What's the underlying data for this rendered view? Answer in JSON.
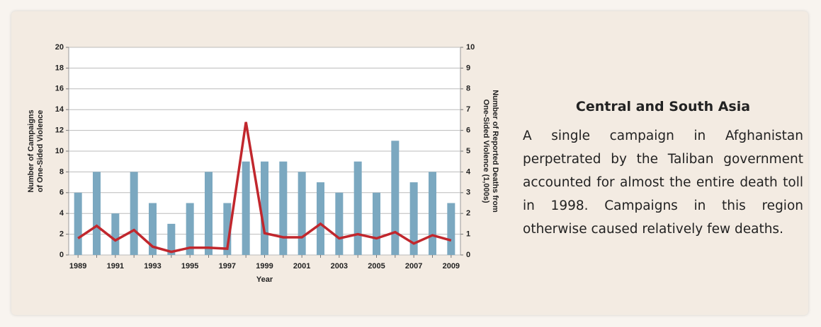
{
  "chart_data": {
    "type": "bar",
    "categories": [
      "1989",
      null,
      "1991",
      null,
      "1993",
      null,
      "1995",
      null,
      "1997",
      null,
      "1999",
      null,
      "2001",
      null,
      "2003",
      null,
      "2005",
      null,
      "2007",
      null,
      "2009"
    ],
    "series": [
      {
        "type": "bar",
        "color": "#7ba8c0",
        "values": [
          6,
          8,
          4,
          8,
          5,
          3,
          5,
          8,
          5,
          9,
          9,
          9,
          8,
          7,
          6,
          9,
          6,
          11,
          7,
          8,
          5
        ]
      },
      {
        "type": "line",
        "axis": "y2",
        "color": "#c1272d",
        "values": [
          0.8,
          1.4,
          0.7,
          1.2,
          0.4,
          0.15,
          0.35,
          0.35,
          0.3,
          6.4,
          1.05,
          0.85,
          0.85,
          1.5,
          0.8,
          1.0,
          0.8,
          1.1,
          0.55,
          0.95,
          0.7
        ]
      }
    ],
    "xlabel": "Year",
    "ylabel": [
      "Number of Campaigns",
      "of One-Sided Violence"
    ],
    "y2label": [
      "Number of Reported Deaths from",
      "One-Sided Violence (1,000s)"
    ],
    "ylim": [
      0,
      20
    ],
    "yticks": [
      0,
      2,
      4,
      6,
      8,
      10,
      12,
      14,
      16,
      18,
      20
    ],
    "y2lim": [
      0,
      10
    ],
    "y2ticks": [
      0,
      1,
      2,
      3,
      4,
      5,
      6,
      7,
      8,
      9,
      10
    ],
    "grid": true
  },
  "side": {
    "title": "Central and South Asia",
    "text": "A single campaign in Afghanistan perpetrated by the Taliban government accounted for almost the entire death toll in 1998. Campaigns in this region otherwise caused relatively few deaths."
  }
}
